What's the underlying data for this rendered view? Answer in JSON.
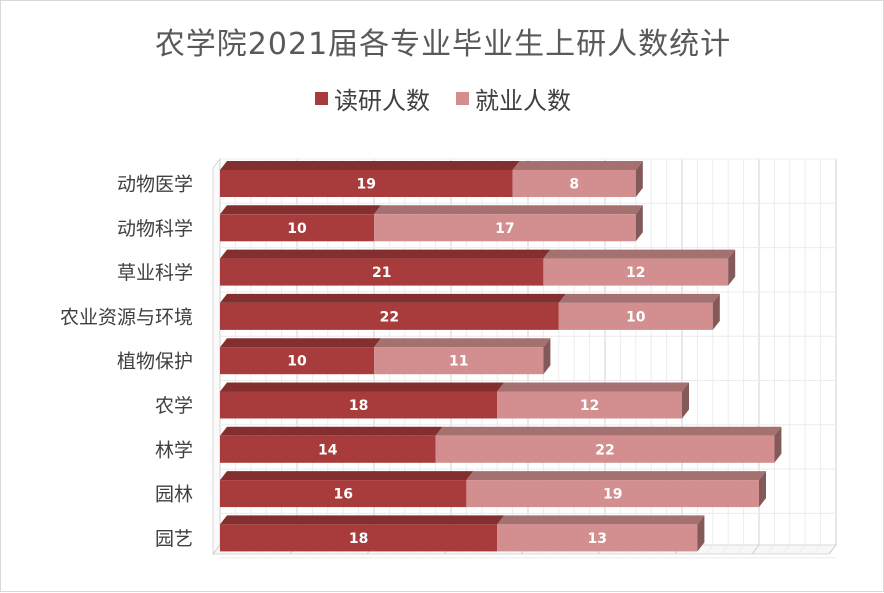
{
  "chart_data": {
    "type": "bar",
    "orientation": "horizontal",
    "stacked": true,
    "style": "3d",
    "title": "农学院2021届各专业毕业生上研人数统计",
    "legend": {
      "position": "top"
    },
    "categories": [
      "动物医学",
      "动物科学",
      "草业科学",
      "农业资源与环境",
      "植物保护",
      "农学",
      "林学",
      "园林",
      "园艺"
    ],
    "series": [
      {
        "name": "读研人数",
        "color": "#a83c3c",
        "values": [
          19,
          10,
          21,
          22,
          10,
          18,
          14,
          16,
          18
        ]
      },
      {
        "name": "就业人数",
        "color": "#d38f8f",
        "values": [
          8,
          17,
          12,
          10,
          11,
          12,
          22,
          19,
          13
        ]
      }
    ],
    "xlim": [
      0,
      40
    ],
    "grid": true,
    "data_labels": true
  }
}
